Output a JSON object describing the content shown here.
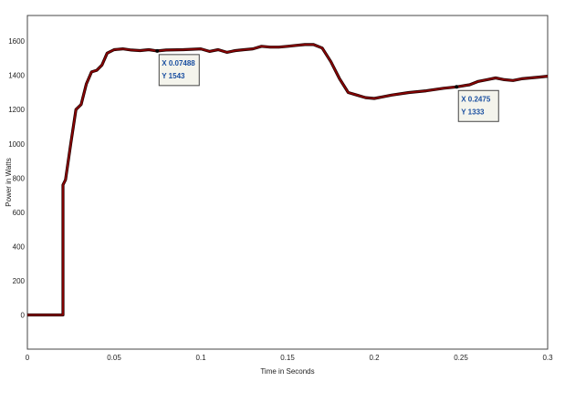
{
  "chart_data": {
    "type": "line",
    "title": "",
    "xlabel": "Time in Seconds",
    "ylabel": "Power in Watts",
    "xlim": [
      0,
      0.3
    ],
    "ylim": [
      -200,
      1750
    ],
    "x_ticks": [
      0,
      0.05,
      0.1,
      0.15,
      0.2,
      0.25,
      0.3
    ],
    "x_tick_labels": [
      "0",
      "0.05",
      "0.1",
      "0.15",
      "0.2",
      "0.25",
      "0.3"
    ],
    "y_ticks": [
      0,
      200,
      400,
      600,
      800,
      1000,
      1200,
      1400,
      1600
    ],
    "y_tick_labels": [
      "0",
      "200",
      "400",
      "600",
      "800",
      "1000",
      "1200",
      "1400",
      "1600"
    ],
    "grid": true,
    "series": [
      {
        "color": "#8b0000",
        "points": [
          [
            0,
            0
          ],
          [
            0.0195,
            0
          ],
          [
            0.0205,
            0
          ],
          [
            0.0205,
            760
          ],
          [
            0.022,
            790
          ],
          [
            0.025,
            1000
          ],
          [
            0.028,
            1200
          ],
          [
            0.031,
            1230
          ],
          [
            0.034,
            1350
          ],
          [
            0.037,
            1420
          ],
          [
            0.04,
            1430
          ],
          [
            0.043,
            1460
          ],
          [
            0.046,
            1530
          ],
          [
            0.05,
            1550
          ],
          [
            0.055,
            1555
          ],
          [
            0.06,
            1548
          ],
          [
            0.065,
            1545
          ],
          [
            0.07,
            1550
          ],
          [
            0.07488,
            1543
          ],
          [
            0.08,
            1548
          ],
          [
            0.09,
            1550
          ],
          [
            0.1,
            1555
          ],
          [
            0.105,
            1540
          ],
          [
            0.11,
            1550
          ],
          [
            0.115,
            1535
          ],
          [
            0.12,
            1545
          ],
          [
            0.125,
            1550
          ],
          [
            0.13,
            1555
          ],
          [
            0.135,
            1570
          ],
          [
            0.14,
            1565
          ],
          [
            0.145,
            1565
          ],
          [
            0.15,
            1570
          ],
          [
            0.155,
            1575
          ],
          [
            0.16,
            1580
          ],
          [
            0.165,
            1580
          ],
          [
            0.17,
            1560
          ],
          [
            0.175,
            1480
          ],
          [
            0.18,
            1380
          ],
          [
            0.185,
            1300
          ],
          [
            0.19,
            1285
          ],
          [
            0.195,
            1270
          ],
          [
            0.2,
            1265
          ],
          [
            0.205,
            1275
          ],
          [
            0.21,
            1285
          ],
          [
            0.22,
            1300
          ],
          [
            0.23,
            1310
          ],
          [
            0.24,
            1325
          ],
          [
            0.2475,
            1333
          ],
          [
            0.255,
            1345
          ],
          [
            0.26,
            1365
          ],
          [
            0.265,
            1375
          ],
          [
            0.27,
            1385
          ],
          [
            0.275,
            1375
          ],
          [
            0.28,
            1370
          ],
          [
            0.285,
            1380
          ],
          [
            0.29,
            1385
          ],
          [
            0.295,
            1390
          ],
          [
            0.3,
            1395
          ]
        ]
      }
    ],
    "annotations": [
      {
        "x": 0.07488,
        "y": 1543,
        "x_text": "X 0.07488",
        "y_text": "Y 1543"
      },
      {
        "x": 0.2475,
        "y": 1333,
        "x_text": "X 0.2475",
        "y_text": "Y 1333"
      }
    ]
  }
}
